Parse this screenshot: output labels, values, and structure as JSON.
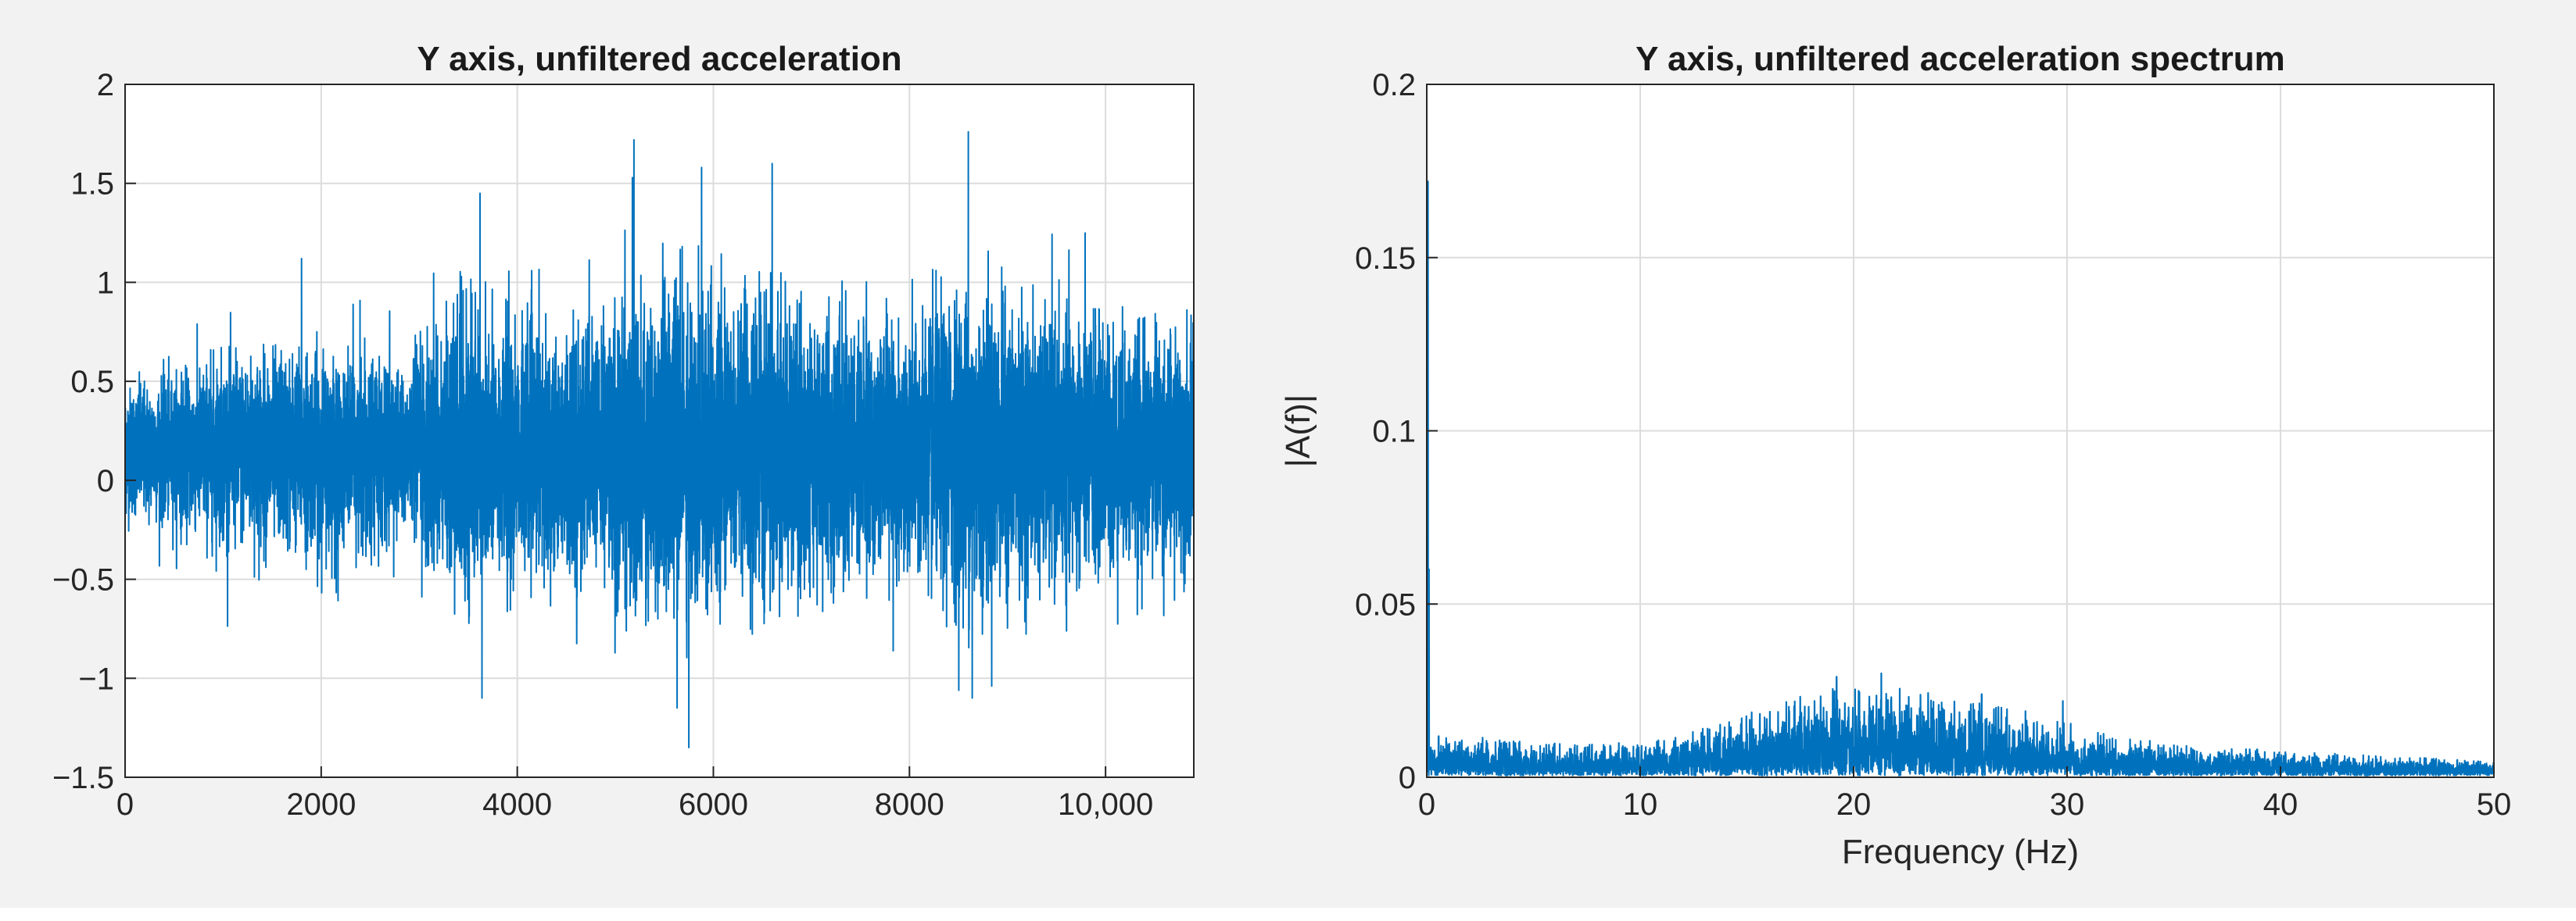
{
  "figure": {
    "background": "#f2f2f2",
    "axes_background": "#ffffff",
    "line_color": "#0072bd",
    "grid_color": "#dcdcdc"
  },
  "chart_data": [
    {
      "type": "line",
      "title": "Y axis, unfiltered acceleration",
      "xlabel": "",
      "ylabel": "",
      "xlim": [
        0,
        10900
      ],
      "ylim": [
        -1.5,
        2
      ],
      "xticks": [
        0,
        2000,
        4000,
        6000,
        8000,
        10000
      ],
      "xticklabels": [
        "0",
        "2000",
        "4000",
        "6000",
        "8000",
        "10,000"
      ],
      "yticks": [
        -1.5,
        -1,
        -0.5,
        0,
        0.5,
        1,
        1.5,
        2
      ],
      "yticklabels": [
        "−1.5",
        "−1",
        "−0.5",
        "0",
        "0.5",
        "1",
        "1.5",
        "2"
      ],
      "grid": true,
      "series": [
        {
          "color": "#0072bd",
          "signal": {
            "n_samples": 10900,
            "mean": 0.15,
            "envelope": [
              {
                "x": 0,
                "max": 0.75,
                "min": -0.4
              },
              {
                "x": 500,
                "max": 0.8,
                "min": -0.5
              },
              {
                "x": 1000,
                "max": 0.9,
                "min": -0.75
              },
              {
                "x": 1800,
                "max": 1.12,
                "min": -0.6
              },
              {
                "x": 2500,
                "max": 1.0,
                "min": -0.7
              },
              {
                "x": 2900,
                "max": 0.85,
                "min": -0.55
              },
              {
                "x": 3100,
                "max": 1.25,
                "min": -0.85
              },
              {
                "x": 3600,
                "max": 1.45,
                "min": -1.1
              },
              {
                "x": 4200,
                "max": 1.1,
                "min": -0.95
              },
              {
                "x": 4800,
                "max": 1.3,
                "min": -0.9
              },
              {
                "x": 5200,
                "max": 1.72,
                "min": -1.05
              },
              {
                "x": 5700,
                "max": 1.5,
                "min": -1.35
              },
              {
                "x": 6200,
                "max": 1.35,
                "min": -1.0
              },
              {
                "x": 6900,
                "max": 1.48,
                "min": -1.0
              },
              {
                "x": 7500,
                "max": 1.25,
                "min": -0.95
              },
              {
                "x": 8000,
                "max": 1.2,
                "min": -0.9
              },
              {
                "x": 8600,
                "max": 1.76,
                "min": -1.1
              },
              {
                "x": 9200,
                "max": 1.3,
                "min": -1.0
              },
              {
                "x": 9800,
                "max": 1.35,
                "min": -0.95
              },
              {
                "x": 10300,
                "max": 1.25,
                "min": -0.8
              },
              {
                "x": 10900,
                "max": 1.2,
                "min": -0.75
              }
            ],
            "peaks": [
              {
                "x": 1800,
                "y": 1.12
              },
              {
                "x": 3620,
                "y": 1.45
              },
              {
                "x": 5190,
                "y": 1.72
              },
              {
                "x": 5880,
                "y": 1.58
              },
              {
                "x": 6600,
                "y": 1.6
              },
              {
                "x": 8600,
                "y": 1.76
              },
              {
                "x": 5750,
                "y": -1.35
              },
              {
                "x": 5630,
                "y": -1.15
              },
              {
                "x": 3640,
                "y": -1.1
              },
              {
                "x": 8640,
                "y": -1.1
              }
            ]
          }
        }
      ]
    },
    {
      "type": "line",
      "title": "Y axis, unfiltered acceleration spectrum",
      "xlabel": "Frequency (Hz)",
      "ylabel": "|A(f)|",
      "xlim": [
        0,
        50
      ],
      "ylim": [
        0,
        0.2
      ],
      "xticks": [
        0,
        10,
        20,
        30,
        40,
        50
      ],
      "xticklabels": [
        "0",
        "10",
        "20",
        "30",
        "40",
        "50"
      ],
      "yticks": [
        0,
        0.05,
        0.1,
        0.15,
        0.2
      ],
      "yticklabels": [
        "0",
        "0.05",
        "0.1",
        "0.15",
        "0.2"
      ],
      "grid": true,
      "series": [
        {
          "color": "#0072bd",
          "signal": {
            "n_points": 5450,
            "floor": 0.0005,
            "envelope": [
              {
                "x": 0,
                "max": 0.013
              },
              {
                "x": 5,
                "max": 0.01
              },
              {
                "x": 10,
                "max": 0.01
              },
              {
                "x": 14,
                "max": 0.016
              },
              {
                "x": 18,
                "max": 0.025
              },
              {
                "x": 21,
                "max": 0.028
              },
              {
                "x": 25,
                "max": 0.023
              },
              {
                "x": 29,
                "max": 0.018
              },
              {
                "x": 32,
                "max": 0.012
              },
              {
                "x": 36,
                "max": 0.009
              },
              {
                "x": 40,
                "max": 0.008
              },
              {
                "x": 45,
                "max": 0.006
              },
              {
                "x": 50,
                "max": 0.005
              }
            ],
            "peaks": [
              {
                "x": 0.05,
                "y": 0.172
              },
              {
                "x": 0.1,
                "y": 0.06
              },
              {
                "x": 19.2,
                "y": 0.029
              },
              {
                "x": 21.3,
                "y": 0.03
              },
              {
                "x": 26.0,
                "y": 0.024
              },
              {
                "x": 29.8,
                "y": 0.022
              }
            ]
          }
        }
      ]
    }
  ]
}
